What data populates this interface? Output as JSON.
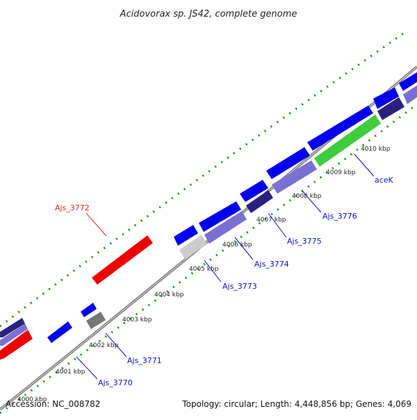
{
  "title": "Acidovorax sp. JS42, complete genome",
  "footer": {
    "accession": "Accession: NC_008782",
    "summary": "Topology: circular; Length: 4,448,856 bp; Genes: 4,069"
  },
  "colors": {
    "background": "#ffffff",
    "backbone": "#7f7f7f",
    "dots": "#1f8a1f",
    "forward_gene": "#0000ee",
    "reverse_gene": "#7b6fd6",
    "rna": "#ee0000",
    "highlight": "#3fcc3f",
    "gray_gene": "#777777",
    "light_gray_gene": "#cccccc",
    "dark_gene": "#2b2080",
    "label_blue": "#1010bb",
    "label_red": "#ee2222"
  },
  "ticks": [
    {
      "label": "4000 kbp"
    },
    {
      "label": "4001 kbp"
    },
    {
      "label": "4002 kbp"
    },
    {
      "label": "4003 kbp"
    },
    {
      "label": "4004 kbp"
    },
    {
      "label": "4005 kbp"
    },
    {
      "label": "4006 kbp"
    },
    {
      "label": "4007 kbp"
    },
    {
      "label": "4008 kbp"
    },
    {
      "label": "4009 kbp"
    },
    {
      "label": "4010 kbp"
    }
  ],
  "gene_labels": [
    {
      "text": "Ajs_3770",
      "color": "#1010bb"
    },
    {
      "text": "Ajs_3771",
      "color": "#1010bb"
    },
    {
      "text": "Ajs_3772",
      "color": "#ee2222"
    },
    {
      "text": "Ajs_3773",
      "color": "#1010bb"
    },
    {
      "text": "Ajs_3774",
      "color": "#1010bb"
    },
    {
      "text": "Ajs_3775",
      "color": "#1010bb"
    },
    {
      "text": "Ajs_3776",
      "color": "#1010bb"
    },
    {
      "text": "aceK",
      "color": "#1010bb"
    }
  ]
}
